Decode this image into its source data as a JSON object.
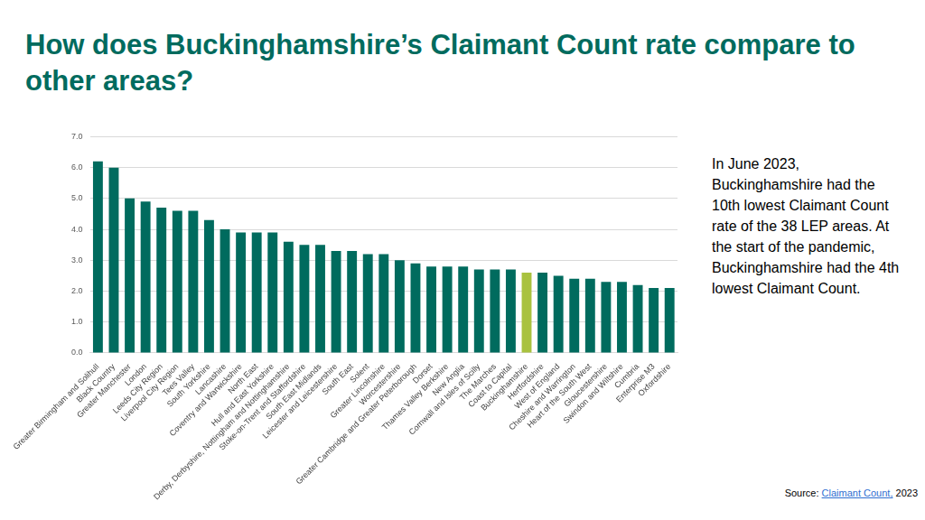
{
  "chart_data": {
    "type": "bar",
    "title": "How does Buckinghamshire’s Claimant Count rate compare to other areas?",
    "annotation": "In June 2023, Buckinghamshire had the 10th lowest Claimant Count rate of the 38 LEP areas.  At the start of the pandemic, Buckinghamshire had the 4th lowest Claimant Count.",
    "source": {
      "prefix": "Source: ",
      "link": "Claimant Count,",
      "suffix": " 2023"
    },
    "categories": [
      "Greater Birmingham and Solihull",
      "Black Country",
      "Greater Manchester",
      "London",
      "Leeds City Region",
      "Liverpool City Region",
      "Tees Valley",
      "South Yorkshire",
      "Lancashire",
      "Coventry and Warwickshire",
      "North East",
      "Hull and East Yorkshire",
      "Derby, Derbyshire, Nottingham and Nottinghamshire",
      "Stoke-on-Trent and Staffordshire",
      "South East Midlands",
      "Leicester and Leicestershire",
      "South East",
      "Solent",
      "Greater Lincolnshire",
      "Worcestershire",
      "Greater Cambridge and Greater Peterborough",
      "Dorset",
      "Thames Valley Berkshire",
      "New Anglia",
      "Cornwall and Isles of Scilly",
      "The Marches",
      "Coast to Capital",
      "Buckinghamshire",
      "Hertfordshire",
      "West of England",
      "Cheshire and Warrington",
      "Heart of the South West",
      "Gloucestershire",
      "Swindon and Wiltshire",
      "Cumbria",
      "Enterprise M3",
      "Oxfordshire"
    ],
    "values": [
      6.2,
      6.0,
      5.0,
      4.9,
      4.7,
      4.6,
      4.6,
      4.3,
      4.0,
      3.9,
      3.9,
      3.9,
      3.6,
      3.5,
      3.5,
      3.3,
      3.3,
      3.2,
      3.2,
      3.0,
      2.9,
      2.8,
      2.8,
      2.8,
      2.7,
      2.7,
      2.7,
      2.6,
      2.6,
      2.5,
      2.4,
      2.4,
      2.3,
      2.3,
      2.2,
      2.1,
      2.1
    ],
    "colors": [
      "#006b5e",
      "#006b5e",
      "#006b5e",
      "#006b5e",
      "#006b5e",
      "#006b5e",
      "#006b5e",
      "#006b5e",
      "#006b5e",
      "#006b5e",
      "#006b5e",
      "#006b5e",
      "#006b5e",
      "#006b5e",
      "#006b5e",
      "#006b5e",
      "#006b5e",
      "#006b5e",
      "#006b5e",
      "#006b5e",
      "#006b5e",
      "#006b5e",
      "#006b5e",
      "#006b5e",
      "#006b5e",
      "#006b5e",
      "#006b5e",
      "#a9c23f",
      "#006b5e",
      "#006b5e",
      "#006b5e",
      "#006b5e",
      "#006b5e",
      "#006b5e",
      "#006b5e",
      "#006b5e",
      "#006b5e"
    ],
    "ylim": [
      0,
      7
    ],
    "yticks": [
      {
        "value": 0,
        "label": "0.0"
      },
      {
        "value": 1,
        "label": "1.0"
      },
      {
        "value": 2,
        "label": "2.0"
      },
      {
        "value": 3,
        "label": "3.0"
      },
      {
        "value": 4,
        "label": "4.0"
      },
      {
        "value": 5,
        "label": "5.0"
      },
      {
        "value": 6,
        "label": "6.0"
      },
      {
        "value": 7,
        "label": "7.0"
      }
    ],
    "grid": true
  }
}
